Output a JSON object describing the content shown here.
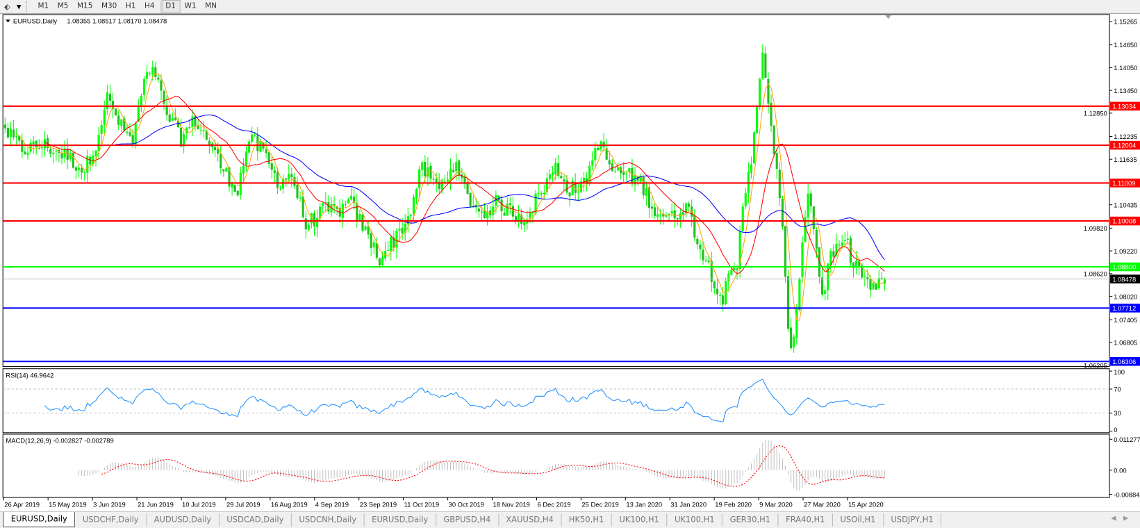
{
  "toolbar": {
    "timeframes": [
      "M1",
      "M5",
      "M15",
      "M30",
      "H1",
      "H4",
      "D1",
      "W1",
      "MN"
    ],
    "active": "D1"
  },
  "chart": {
    "symbol_label": "EURUSD,Daily",
    "ohlc": "1.08355 1.08517 1.08170 1.08478",
    "current_price": "1.08478"
  },
  "price_axis": {
    "ticks": [
      "1.15265",
      "1.14650",
      "1.14050",
      "1.13450",
      "1.12850",
      "1.12235",
      "1.11635",
      "1.10435",
      "1.09820",
      "1.09220",
      "1.08620",
      "1.08020",
      "1.07405",
      "1.06805",
      "1.06205"
    ]
  },
  "levels": [
    {
      "price": "1.13034",
      "color": "#ff0000",
      "text_color": "#ffffff"
    },
    {
      "price": "1.12004",
      "color": "#ff0000",
      "text_color": "#ffffff"
    },
    {
      "price": "1.11009",
      "color": "#ff0000",
      "text_color": "#ffffff"
    },
    {
      "price": "1.10008",
      "color": "#ff0000",
      "text_color": "#ffffff"
    },
    {
      "price": "1.08800",
      "color": "#00ff00",
      "text_color": "#ffffff"
    },
    {
      "price": "1.07712",
      "color": "#0000ff",
      "text_color": "#ffffff"
    },
    {
      "price": "1.06306",
      "color": "#0000ff",
      "text_color": "#ffffff"
    }
  ],
  "rsi": {
    "label": "RSI(14) 46.9642",
    "ticks": [
      "100",
      "70",
      "30",
      "0"
    ],
    "line_color": "#1e90ff"
  },
  "macd": {
    "label": "MACD(12,26,9) -0.002827 -0.002789",
    "ticks": [
      "0.011277",
      "0.00",
      "-0.008845"
    ],
    "signal_color": "#ff0000"
  },
  "date_axis": [
    "26 Apr 2019",
    "15 May 2019",
    "3 Jun 2019",
    "21 Jun 2019",
    "10 Jul 2019",
    "29 Jul 2019",
    "16 Aug 2019",
    "4 Sep 2019",
    "23 Sep 2019",
    "11 Oct 2019",
    "30 Oct 2019",
    "18 Nov 2019",
    "6 Dec 2019",
    "25 Dec 2019",
    "13 Jan 2020",
    "31 Jan 2020",
    "19 Feb 2020",
    "9 Mar 2020",
    "27 Mar 2020",
    "15 Apr 2020"
  ],
  "tabs": [
    "EURUSD,Daily",
    "USDCHF,Daily",
    "AUDUSD,Daily",
    "USDCAD,Daily",
    "USDCNH,Daily",
    "EURUSD,Daily",
    "GBPUSD,H4",
    "XAUUSD,H4",
    "HK50,H1",
    "UK100,H1",
    "UK100,H1",
    "GER30,H1",
    "FRA40,H1",
    "USOil,H1",
    "USDJPY,H1"
  ],
  "active_tab": 0,
  "colors": {
    "candle": "#00ff00",
    "ma_fast": "#ffa500",
    "ma_mid": "#ff0000",
    "ma_slow": "#0000ff"
  },
  "chart_data": {
    "type": "candlestick",
    "symbol": "EURUSD",
    "timeframe": "Daily",
    "ylim": [
      1.06205,
      1.15265
    ],
    "close_path": [
      [
        0,
        1.1238
      ],
      [
        6,
        1.119
      ],
      [
        14,
        1.12
      ],
      [
        22,
        1.1171
      ],
      [
        28,
        1.1133
      ],
      [
        32,
        1.1209
      ],
      [
        36,
        1.1324
      ],
      [
        41,
        1.1248
      ],
      [
        45,
        1.1209
      ],
      [
        49,
        1.1372
      ],
      [
        53,
        1.1392
      ],
      [
        56,
        1.1296
      ],
      [
        62,
        1.1219
      ],
      [
        67,
        1.1267
      ],
      [
        72,
        1.1209
      ],
      [
        77,
        1.1133
      ],
      [
        82,
        1.1085
      ],
      [
        86,
        1.1219
      ],
      [
        91,
        1.1181
      ],
      [
        96,
        1.1104
      ],
      [
        101,
        1.1123
      ],
      [
        106,
        1.0989
      ],
      [
        112,
        1.1027
      ],
      [
        117,
        1.1027
      ],
      [
        122,
        1.1047
      ],
      [
        127,
        1.097
      ],
      [
        132,
        1.0903
      ],
      [
        137,
        1.0951
      ],
      [
        142,
        1.1008
      ],
      [
        147,
        1.1142
      ],
      [
        153,
        1.1085
      ],
      [
        158,
        1.1152
      ],
      [
        163,
        1.1066
      ],
      [
        168,
        1.1018
      ],
      [
        173,
        1.1047
      ],
      [
        178,
        1.1027
      ],
      [
        183,
        1.1008
      ],
      [
        188,
        1.1066
      ],
      [
        194,
        1.1142
      ],
      [
        199,
        1.1085
      ],
      [
        204,
        1.1094
      ],
      [
        209,
        1.1209
      ],
      [
        214,
        1.1133
      ],
      [
        219,
        1.1123
      ],
      [
        224,
        1.1104
      ],
      [
        229,
        1.1027
      ],
      [
        235,
        1.1008
      ],
      [
        240,
        1.1047
      ],
      [
        245,
        1.0932
      ],
      [
        250,
        1.0845
      ],
      [
        253,
        1.0797
      ],
      [
        255,
        1.0845
      ],
      [
        258,
        1.0874
      ],
      [
        260,
        1.1047
      ],
      [
        263,
        1.1171
      ],
      [
        265,
        1.1315
      ],
      [
        267,
        1.143
      ],
      [
        269,
        1.1296
      ],
      [
        272,
        1.1142
      ],
      [
        274,
        1.097
      ],
      [
        276,
        1.0701
      ],
      [
        278,
        1.0673
      ],
      [
        279,
        1.0778
      ],
      [
        281,
        1.0951
      ],
      [
        283,
        1.1085
      ],
      [
        286,
        1.0932
      ],
      [
        288,
        1.0797
      ],
      [
        291,
        1.0912
      ],
      [
        294,
        1.0922
      ],
      [
        296,
        1.0951
      ],
      [
        299,
        1.0893
      ],
      [
        301,
        1.0874
      ],
      [
        304,
        1.0836
      ],
      [
        306,
        1.0817
      ],
      [
        310,
        1.08478
      ]
    ]
  }
}
